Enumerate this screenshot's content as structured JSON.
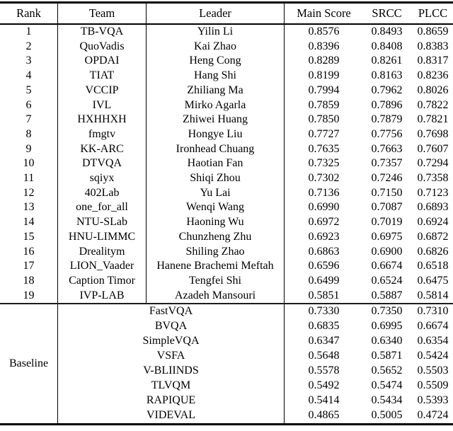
{
  "table": {
    "columns": [
      "Rank",
      "Team",
      "Leader",
      "Main Score",
      "SRCC",
      "PLCC"
    ],
    "ranked_rows": [
      {
        "rank": "1",
        "team": "TB-VQA",
        "leader": "Yilin Li",
        "main_score": "0.8576",
        "srcc": "0.8493",
        "plcc": "0.8659"
      },
      {
        "rank": "2",
        "team": "QuoVadis",
        "leader": "Kai Zhao",
        "main_score": "0.8396",
        "srcc": "0.8408",
        "plcc": "0.8383"
      },
      {
        "rank": "3",
        "team": "OPDAI",
        "leader": "Heng Cong",
        "main_score": "0.8289",
        "srcc": "0.8261",
        "plcc": "0.8317"
      },
      {
        "rank": "4",
        "team": "TIAT",
        "leader": "Hang Shi",
        "main_score": "0.8199",
        "srcc": "0.8163",
        "plcc": "0.8236"
      },
      {
        "rank": "5",
        "team": "VCCIP",
        "leader": "Zhiliang Ma",
        "main_score": "0.7994",
        "srcc": "0.7962",
        "plcc": "0.8026"
      },
      {
        "rank": "6",
        "team": "IVL",
        "leader": "Mirko Agarla",
        "main_score": "0.7859",
        "srcc": "0.7896",
        "plcc": "0.7822"
      },
      {
        "rank": "7",
        "team": "HXHHXH",
        "leader": "Zhiwei Huang",
        "main_score": "0.7850",
        "srcc": "0.7879",
        "plcc": "0.7821"
      },
      {
        "rank": "8",
        "team": "fmgtv",
        "leader": "Hongye Liu",
        "main_score": "0.7727",
        "srcc": "0.7756",
        "plcc": "0.7698"
      },
      {
        "rank": "9",
        "team": "KK-ARC",
        "leader": "Ironhead Chuang",
        "main_score": "0.7635",
        "srcc": "0.7663",
        "plcc": "0.7607"
      },
      {
        "rank": "10",
        "team": "DTVQA",
        "leader": "Haotian Fan",
        "main_score": "0.7325",
        "srcc": "0.7357",
        "plcc": "0.7294"
      },
      {
        "rank": "11",
        "team": "sqiyx",
        "leader": "Shiqi Zhou",
        "main_score": "0.7302",
        "srcc": "0.7246",
        "plcc": "0.7358"
      },
      {
        "rank": "12",
        "team": "402Lab",
        "leader": "Yu Lai",
        "main_score": "0.7136",
        "srcc": "0.7150",
        "plcc": "0.7123"
      },
      {
        "rank": "13",
        "team": "one_for_all",
        "leader": "Wenqi Wang",
        "main_score": "0.6990",
        "srcc": "0.7087",
        "plcc": "0.6893"
      },
      {
        "rank": "14",
        "team": "NTU-SLab",
        "leader": "Haoning Wu",
        "main_score": "0.6972",
        "srcc": "0.7019",
        "plcc": "0.6924"
      },
      {
        "rank": "15",
        "team": "HNU-LIMMC",
        "leader": "Chunzheng Zhu",
        "main_score": "0.6923",
        "srcc": "0.6975",
        "plcc": "0.6872"
      },
      {
        "rank": "16",
        "team": "Drealitym",
        "leader": "Shiling Zhao",
        "main_score": "0.6863",
        "srcc": "0.6900",
        "plcc": "0.6826"
      },
      {
        "rank": "17",
        "team": "LION_Vaader",
        "leader": "Hanene Brachemi Meftah",
        "main_score": "0.6596",
        "srcc": "0.6674",
        "plcc": "0.6518"
      },
      {
        "rank": "18",
        "team": "Caption Timor",
        "leader": "Tengfei Shi",
        "main_score": "0.6499",
        "srcc": "0.6524",
        "plcc": "0.6475"
      },
      {
        "rank": "19",
        "team": "IVP-LAB",
        "leader": "Azadeh Mansouri",
        "main_score": "0.5851",
        "srcc": "0.5887",
        "plcc": "0.5814"
      }
    ],
    "baseline_label": "Baseline",
    "baseline_rows": [
      {
        "method": "FastVQA",
        "main_score": "0.7330",
        "srcc": "0.7350",
        "plcc": "0.7310"
      },
      {
        "method": "BVQA",
        "main_score": "0.6835",
        "srcc": "0.6995",
        "plcc": "0.6674"
      },
      {
        "method": "SimpleVQA",
        "main_score": "0.6347",
        "srcc": "0.6340",
        "plcc": "0.6354"
      },
      {
        "method": "VSFA",
        "main_score": "0.5648",
        "srcc": "0.5871",
        "plcc": "0.5424"
      },
      {
        "method": "V-BLIINDS",
        "main_score": "0.5578",
        "srcc": "0.5652",
        "plcc": "0.5503"
      },
      {
        "method": "TLVQM",
        "main_score": "0.5492",
        "srcc": "0.5474",
        "plcc": "0.5509"
      },
      {
        "method": "RAPIQUE",
        "main_score": "0.5414",
        "srcc": "0.5434",
        "plcc": "0.5393"
      },
      {
        "method": "VIDEVAL",
        "main_score": "0.4865",
        "srcc": "0.5005",
        "plcc": "0.4724"
      }
    ]
  }
}
